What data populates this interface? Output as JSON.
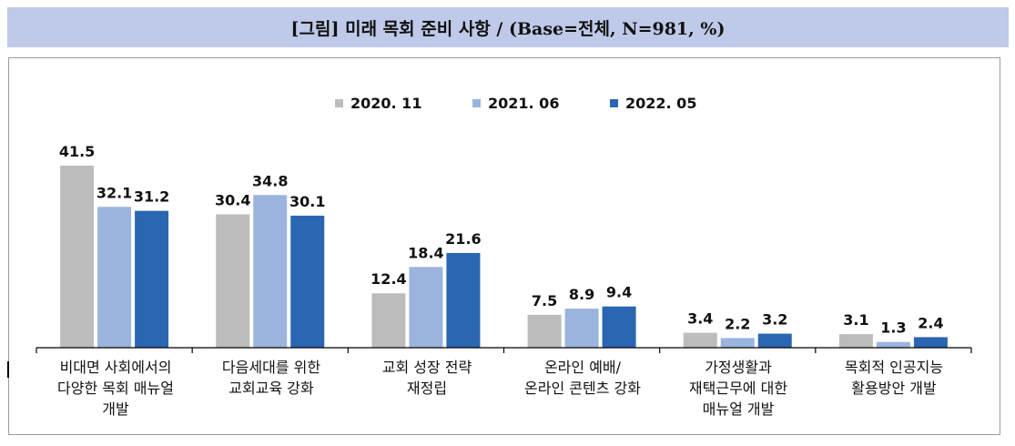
{
  "title": "[그림] 미래 목회 준비 사항 / (Base=전체, N=981, %)",
  "chart_data": {
    "type": "bar",
    "categories": [
      "비대면 사회에서의\n다양한 목회 매뉴얼\n개발",
      "다음세대를 위한\n교회교육 강화",
      "교회 성장 전략\n재정립",
      "온라인 예배/\n온라인 콘텐츠 강화",
      "가정생활과\n재택근무에 대한\n매뉴얼 개발",
      "목회적 인공지능\n활용방안 개발"
    ],
    "series": [
      {
        "name": "2020. 11",
        "color": "#bcbcbc",
        "values": [
          41.5,
          30.4,
          12.4,
          7.5,
          3.4,
          3.1
        ]
      },
      {
        "name": "2021. 06",
        "color": "#9ab4de",
        "values": [
          32.1,
          34.8,
          18.4,
          8.9,
          2.2,
          1.3
        ]
      },
      {
        "name": "2022. 05",
        "color": "#2a66b1",
        "values": [
          31.2,
          30.1,
          21.6,
          9.4,
          3.2,
          2.4
        ]
      }
    ],
    "ylim": [
      0,
      45
    ],
    "grid": false,
    "legend_position": "top-center"
  }
}
